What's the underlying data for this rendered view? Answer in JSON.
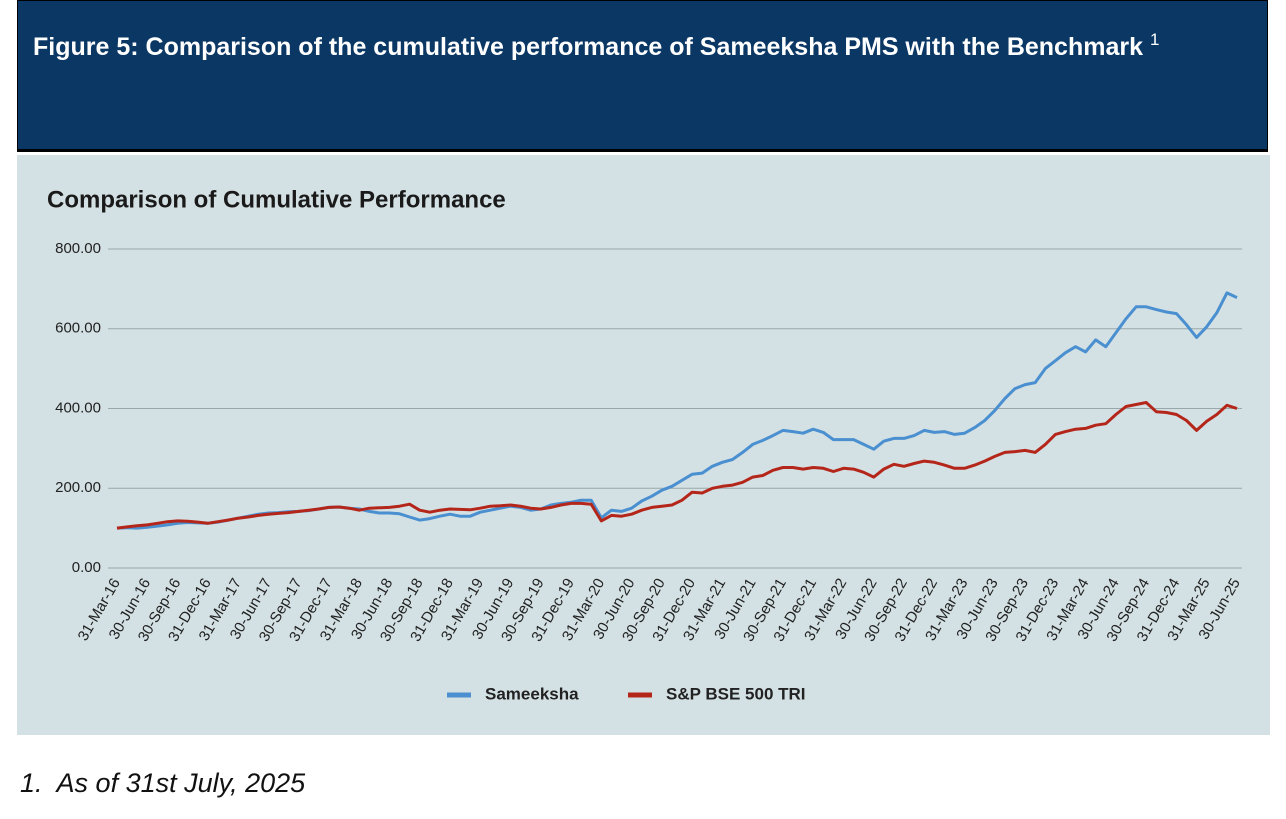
{
  "header": {
    "title": "Figure 5: Comparison of the cumulative performance of Sameeksha PMS with the Benchmark",
    "superscript": "1"
  },
  "chart_data": {
    "type": "line",
    "title": "Comparison of  Cumulative Performance",
    "categories": [
      "31-Mar-16",
      null,
      null,
      "30-Jun-16",
      null,
      null,
      "30-Sep-16",
      null,
      null,
      "31-Dec-16",
      null,
      null,
      "31-Mar-17",
      null,
      null,
      "30-Jun-17",
      null,
      null,
      "30-Sep-17",
      null,
      null,
      "31-Dec-17",
      null,
      null,
      "31-Mar-18",
      null,
      null,
      "30-Jun-18",
      null,
      null,
      "30-Sep-18",
      null,
      null,
      "31-Dec-18",
      null,
      null,
      "31-Mar-19",
      null,
      null,
      "30-Jun-19",
      null,
      null,
      "30-Sep-19",
      null,
      null,
      "31-Dec-19",
      null,
      null,
      "31-Mar-20",
      null,
      null,
      "30-Jun-20",
      null,
      null,
      "30-Sep-20",
      null,
      null,
      "31-Dec-20",
      null,
      null,
      "31-Mar-21",
      null,
      null,
      "30-Jun-21",
      null,
      null,
      "30-Sep-21",
      null,
      null,
      "31-Dec-21",
      null,
      null,
      "31-Mar-22",
      null,
      null,
      "30-Jun-22",
      null,
      null,
      "30-Sep-22",
      null,
      null,
      "31-Dec-22",
      null,
      null,
      "31-Mar-23",
      null,
      null,
      "30-Jun-23",
      null,
      null,
      "30-Sep-23",
      null,
      null,
      "31-Dec-23",
      null,
      null,
      "31-Mar-24",
      null,
      null,
      "30-Jun-24",
      null,
      null,
      "30-Sep-24",
      null,
      null,
      "31-Dec-24",
      null,
      null,
      "31-Mar-25",
      null,
      null,
      "30-Jun-25"
    ],
    "series": [
      {
        "name": "Sameeksha",
        "color": "#4a8fd0",
        "values": [
          100,
          101,
          100,
          102,
          105,
          108,
          112,
          114,
          113,
          112,
          115,
          120,
          125,
          130,
          135,
          138,
          139,
          141,
          142,
          144,
          148,
          152,
          153,
          150,
          148,
          142,
          138,
          138,
          136,
          128,
          120,
          124,
          130,
          135,
          130,
          130,
          140,
          145,
          150,
          155,
          152,
          145,
          148,
          158,
          162,
          165,
          170,
          170,
          126,
          145,
          142,
          150,
          168,
          180,
          195,
          205,
          220,
          235,
          238,
          255,
          265,
          272,
          290,
          310,
          320,
          332,
          345,
          342,
          338,
          348,
          340,
          322,
          322,
          322,
          310,
          298,
          318,
          325,
          325,
          332,
          345,
          340,
          342,
          335,
          338,
          352,
          370,
          395,
          425,
          450,
          460,
          465,
          500,
          520,
          540,
          555,
          542,
          572,
          555,
          590,
          625,
          655,
          655,
          648,
          642,
          638,
          610,
          578,
          605,
          640,
          690,
          678
        ]
      },
      {
        "name": "S&P BSE 500 TRI",
        "color": "#b5261a",
        "values": [
          100,
          103,
          106,
          108,
          112,
          116,
          118,
          117,
          115,
          112,
          116,
          120,
          125,
          128,
          132,
          135,
          137,
          139,
          142,
          145,
          148,
          152,
          153,
          150,
          145,
          150,
          151,
          152,
          155,
          160,
          145,
          140,
          145,
          148,
          147,
          146,
          150,
          155,
          156,
          158,
          155,
          150,
          148,
          152,
          158,
          162,
          162,
          160,
          118,
          132,
          130,
          135,
          145,
          152,
          155,
          158,
          170,
          190,
          188,
          200,
          205,
          208,
          215,
          228,
          232,
          245,
          252,
          252,
          248,
          252,
          250,
          242,
          250,
          248,
          240,
          228,
          248,
          260,
          255,
          262,
          268,
          265,
          258,
          250,
          250,
          258,
          268,
          280,
          290,
          292,
          295,
          290,
          310,
          335,
          342,
          348,
          350,
          358,
          362,
          385,
          405,
          410,
          415,
          392,
          390,
          385,
          370,
          345,
          368,
          385,
          408,
          400
        ]
      }
    ],
    "ylim": [
      0,
      800
    ],
    "yticks": [
      {
        "value": 0,
        "label": "0.00"
      },
      {
        "value": 200,
        "label": "200.00"
      },
      {
        "value": 400,
        "label": "400.00"
      },
      {
        "value": 600,
        "label": "600.00"
      },
      {
        "value": 800,
        "label": "800.00"
      }
    ],
    "grid": true,
    "legend": "bottom"
  },
  "footnote": {
    "number": "1.",
    "text": "As of 31st July, 2025"
  }
}
